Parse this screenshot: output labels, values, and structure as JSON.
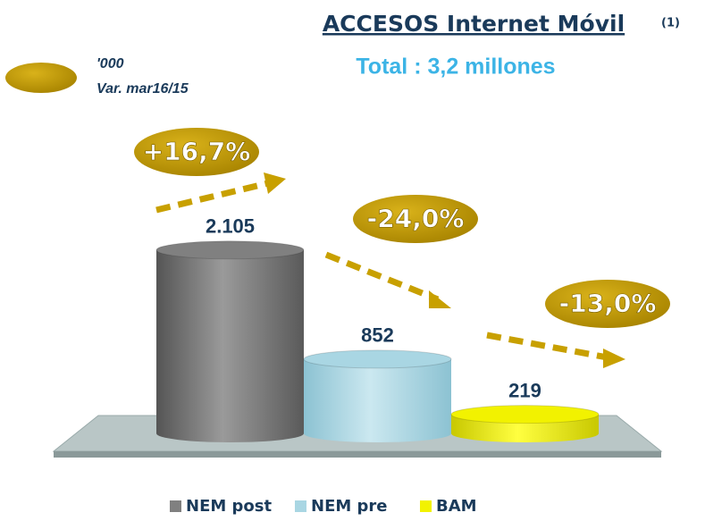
{
  "chart_data": {
    "type": "bar",
    "title": "ACCESOS Internet Móvil",
    "title_note": "(1)",
    "subtitle": "Total : 3,2 millones",
    "legend_note": [
      "'000",
      "Var. mar16/15"
    ],
    "categories": [
      "NEM post",
      "NEM pre",
      "BAM"
    ],
    "values": [
      2105,
      852,
      219
    ],
    "value_labels": [
      "2.105",
      "852",
      "219"
    ],
    "changes": [
      16.7,
      -24.0,
      -13.0
    ],
    "change_labels": [
      "+16,7%",
      "-24,0%",
      "-13,0%"
    ],
    "colors": [
      "#808080",
      "#a9d6e3",
      "#f2f200"
    ]
  }
}
